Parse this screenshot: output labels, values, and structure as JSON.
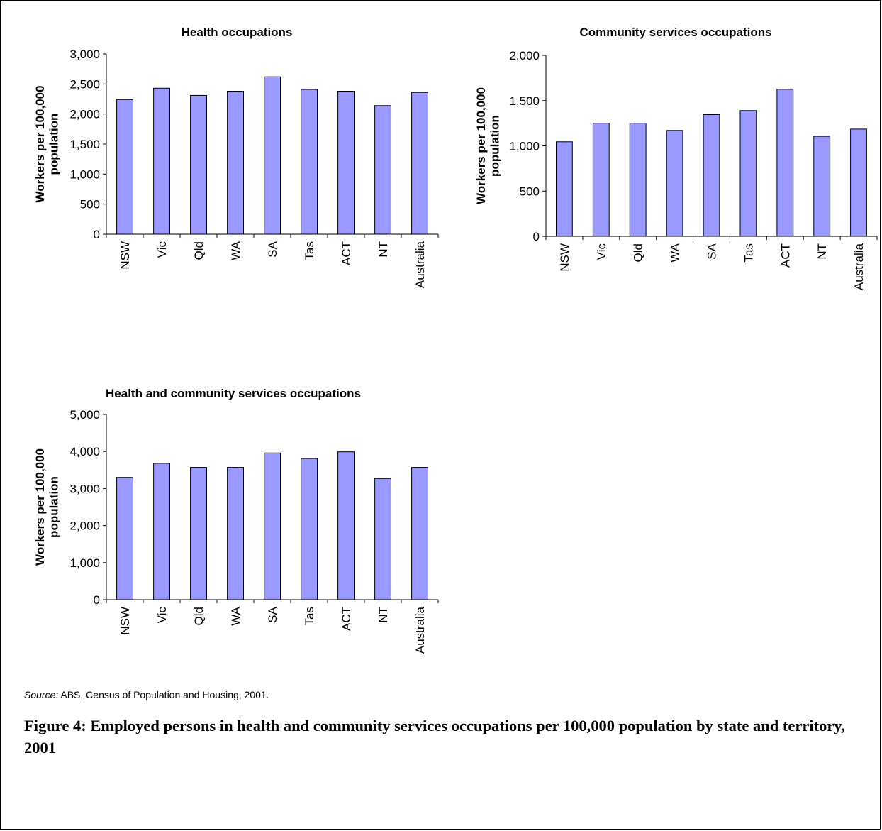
{
  "y_title": [
    "Workers per 100,000",
    "population"
  ],
  "source": {
    "label": "Source:",
    "text": "ABS, Census of Population and Housing, 2001."
  },
  "caption": "Figure 4:  Employed persons in health and community services occupations per 100,000 population by state and territory, 2001",
  "colors": {
    "bar": "#9999ff",
    "stroke": "#000000"
  },
  "chart_data": [
    {
      "type": "bar",
      "title": "Health occupations",
      "ylabel": "Workers per 100,000 population",
      "xlabel": "",
      "categories": [
        "NSW",
        "Vic",
        "Qld",
        "WA",
        "SA",
        "Tas",
        "ACT",
        "NT",
        "Australia"
      ],
      "values": [
        2240,
        2430,
        2310,
        2380,
        2620,
        2410,
        2380,
        2140,
        2360
      ],
      "ylim": [
        0,
        3000
      ],
      "yticks": [
        "0",
        "500",
        "1,000",
        "1,500",
        "2,000",
        "2,500",
        "3,000"
      ],
      "grid": false,
      "legend": "none"
    },
    {
      "type": "bar",
      "title": "Community services occupations",
      "ylabel": "Workers per 100,000 population",
      "xlabel": "",
      "categories": [
        "NSW",
        "Vic",
        "Qld",
        "WA",
        "SA",
        "Tas",
        "ACT",
        "NT",
        "Australia"
      ],
      "values": [
        1045,
        1250,
        1250,
        1170,
        1345,
        1390,
        1625,
        1105,
        1185
      ],
      "ylim": [
        0,
        2000
      ],
      "yticks": [
        "0",
        "500",
        "1,000",
        "1,500",
        "2,000"
      ],
      "grid": false,
      "legend": "none"
    },
    {
      "type": "bar",
      "title": "Health and community services occupations",
      "ylabel": "Workers per 100,000 population",
      "xlabel": "",
      "categories": [
        "NSW",
        "Vic",
        "Qld",
        "WA",
        "SA",
        "Tas",
        "ACT",
        "NT",
        "Australia"
      ],
      "values": [
        3300,
        3680,
        3570,
        3570,
        3960,
        3810,
        3990,
        3270,
        3570
      ],
      "ylim": [
        0,
        5000
      ],
      "yticks": [
        "0",
        "1,000",
        "2,000",
        "3,000",
        "4,000",
        "5,000"
      ],
      "grid": false,
      "legend": "none"
    }
  ]
}
